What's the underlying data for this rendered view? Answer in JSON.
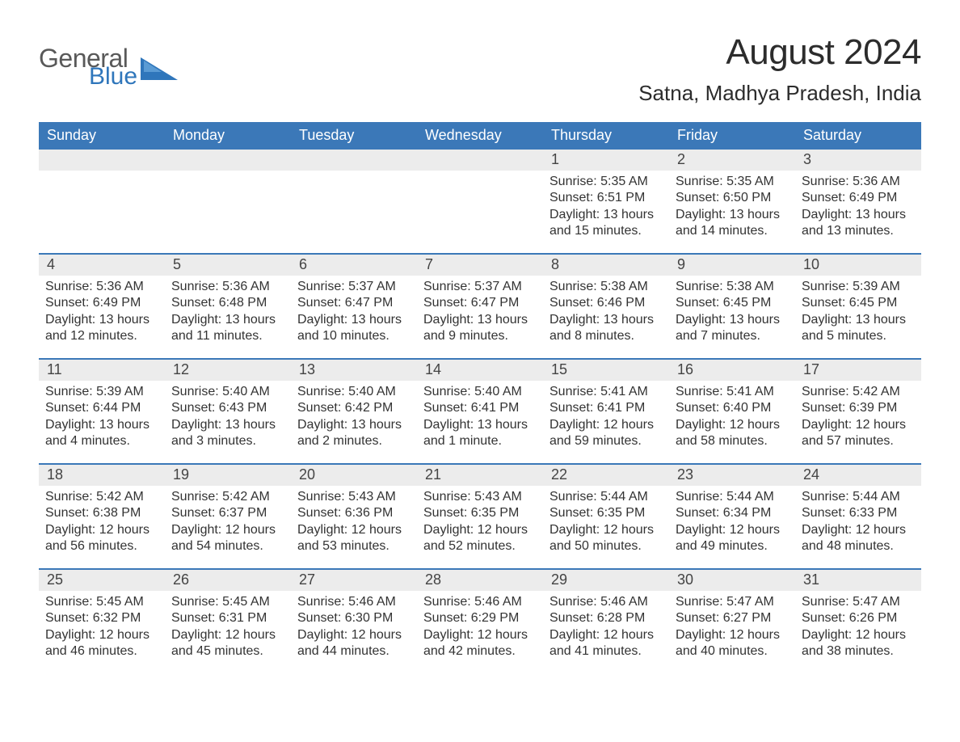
{
  "logo": {
    "text1": "General",
    "text2": "Blue",
    "color_gray": "#595959",
    "color_blue": "#2f76bb"
  },
  "title": "August 2024",
  "location": "Satna, Madhya Pradesh, India",
  "colors": {
    "header_bg": "#3b78b8",
    "header_text": "#ffffff",
    "daynum_bg": "#ececec",
    "week_border": "#3b78b8",
    "body_text": "#333333"
  },
  "weekdays": [
    "Sunday",
    "Monday",
    "Tuesday",
    "Wednesday",
    "Thursday",
    "Friday",
    "Saturday"
  ],
  "labels": {
    "sunrise": "Sunrise:",
    "sunset": "Sunset:",
    "daylight": "Daylight:"
  },
  "weeks": [
    [
      null,
      null,
      null,
      null,
      {
        "n": "1",
        "sunrise": "5:35 AM",
        "sunset": "6:51 PM",
        "daylight": "13 hours and 15 minutes."
      },
      {
        "n": "2",
        "sunrise": "5:35 AM",
        "sunset": "6:50 PM",
        "daylight": "13 hours and 14 minutes."
      },
      {
        "n": "3",
        "sunrise": "5:36 AM",
        "sunset": "6:49 PM",
        "daylight": "13 hours and 13 minutes."
      }
    ],
    [
      {
        "n": "4",
        "sunrise": "5:36 AM",
        "sunset": "6:49 PM",
        "daylight": "13 hours and 12 minutes."
      },
      {
        "n": "5",
        "sunrise": "5:36 AM",
        "sunset": "6:48 PM",
        "daylight": "13 hours and 11 minutes."
      },
      {
        "n": "6",
        "sunrise": "5:37 AM",
        "sunset": "6:47 PM",
        "daylight": "13 hours and 10 minutes."
      },
      {
        "n": "7",
        "sunrise": "5:37 AM",
        "sunset": "6:47 PM",
        "daylight": "13 hours and 9 minutes."
      },
      {
        "n": "8",
        "sunrise": "5:38 AM",
        "sunset": "6:46 PM",
        "daylight": "13 hours and 8 minutes."
      },
      {
        "n": "9",
        "sunrise": "5:38 AM",
        "sunset": "6:45 PM",
        "daylight": "13 hours and 7 minutes."
      },
      {
        "n": "10",
        "sunrise": "5:39 AM",
        "sunset": "6:45 PM",
        "daylight": "13 hours and 5 minutes."
      }
    ],
    [
      {
        "n": "11",
        "sunrise": "5:39 AM",
        "sunset": "6:44 PM",
        "daylight": "13 hours and 4 minutes."
      },
      {
        "n": "12",
        "sunrise": "5:40 AM",
        "sunset": "6:43 PM",
        "daylight": "13 hours and 3 minutes."
      },
      {
        "n": "13",
        "sunrise": "5:40 AM",
        "sunset": "6:42 PM",
        "daylight": "13 hours and 2 minutes."
      },
      {
        "n": "14",
        "sunrise": "5:40 AM",
        "sunset": "6:41 PM",
        "daylight": "13 hours and 1 minute."
      },
      {
        "n": "15",
        "sunrise": "5:41 AM",
        "sunset": "6:41 PM",
        "daylight": "12 hours and 59 minutes."
      },
      {
        "n": "16",
        "sunrise": "5:41 AM",
        "sunset": "6:40 PM",
        "daylight": "12 hours and 58 minutes."
      },
      {
        "n": "17",
        "sunrise": "5:42 AM",
        "sunset": "6:39 PM",
        "daylight": "12 hours and 57 minutes."
      }
    ],
    [
      {
        "n": "18",
        "sunrise": "5:42 AM",
        "sunset": "6:38 PM",
        "daylight": "12 hours and 56 minutes."
      },
      {
        "n": "19",
        "sunrise": "5:42 AM",
        "sunset": "6:37 PM",
        "daylight": "12 hours and 54 minutes."
      },
      {
        "n": "20",
        "sunrise": "5:43 AM",
        "sunset": "6:36 PM",
        "daylight": "12 hours and 53 minutes."
      },
      {
        "n": "21",
        "sunrise": "5:43 AM",
        "sunset": "6:35 PM",
        "daylight": "12 hours and 52 minutes."
      },
      {
        "n": "22",
        "sunrise": "5:44 AM",
        "sunset": "6:35 PM",
        "daylight": "12 hours and 50 minutes."
      },
      {
        "n": "23",
        "sunrise": "5:44 AM",
        "sunset": "6:34 PM",
        "daylight": "12 hours and 49 minutes."
      },
      {
        "n": "24",
        "sunrise": "5:44 AM",
        "sunset": "6:33 PM",
        "daylight": "12 hours and 48 minutes."
      }
    ],
    [
      {
        "n": "25",
        "sunrise": "5:45 AM",
        "sunset": "6:32 PM",
        "daylight": "12 hours and 46 minutes."
      },
      {
        "n": "26",
        "sunrise": "5:45 AM",
        "sunset": "6:31 PM",
        "daylight": "12 hours and 45 minutes."
      },
      {
        "n": "27",
        "sunrise": "5:46 AM",
        "sunset": "6:30 PM",
        "daylight": "12 hours and 44 minutes."
      },
      {
        "n": "28",
        "sunrise": "5:46 AM",
        "sunset": "6:29 PM",
        "daylight": "12 hours and 42 minutes."
      },
      {
        "n": "29",
        "sunrise": "5:46 AM",
        "sunset": "6:28 PM",
        "daylight": "12 hours and 41 minutes."
      },
      {
        "n": "30",
        "sunrise": "5:47 AM",
        "sunset": "6:27 PM",
        "daylight": "12 hours and 40 minutes."
      },
      {
        "n": "31",
        "sunrise": "5:47 AM",
        "sunset": "6:26 PM",
        "daylight": "12 hours and 38 minutes."
      }
    ]
  ]
}
